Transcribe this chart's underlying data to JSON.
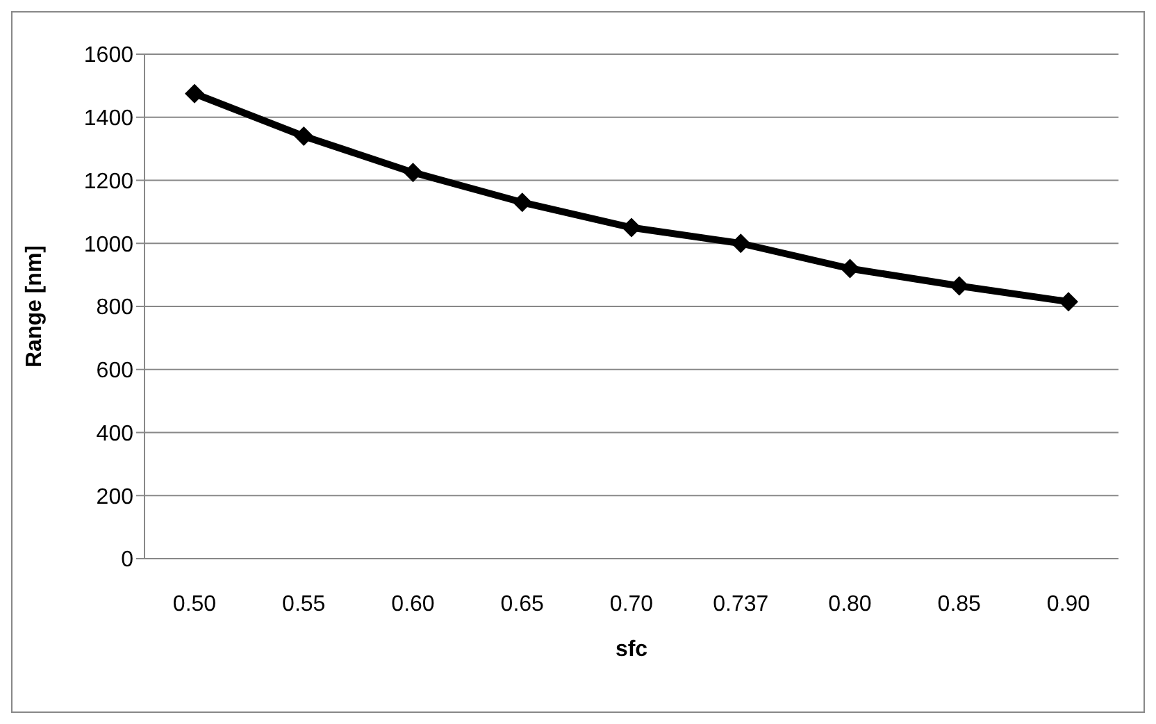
{
  "chart_data": {
    "type": "line",
    "xlabel": "sfc",
    "ylabel": "Range [nm]",
    "categories": [
      "0.50",
      "0.55",
      "0.60",
      "0.65",
      "0.70",
      "0.737",
      "0.80",
      "0.85",
      "0.90"
    ],
    "series": [
      {
        "color": "#000000",
        "values": [
          1475,
          1340,
          1225,
          1130,
          1050,
          1000,
          920,
          865,
          815
        ]
      }
    ],
    "ylim": [
      0,
      1600
    ],
    "yticks": [
      0,
      200,
      400,
      600,
      800,
      1000,
      1200,
      1400,
      1600
    ],
    "grid": "y",
    "legend": false,
    "marker": "diamond",
    "line_style": "solid"
  }
}
